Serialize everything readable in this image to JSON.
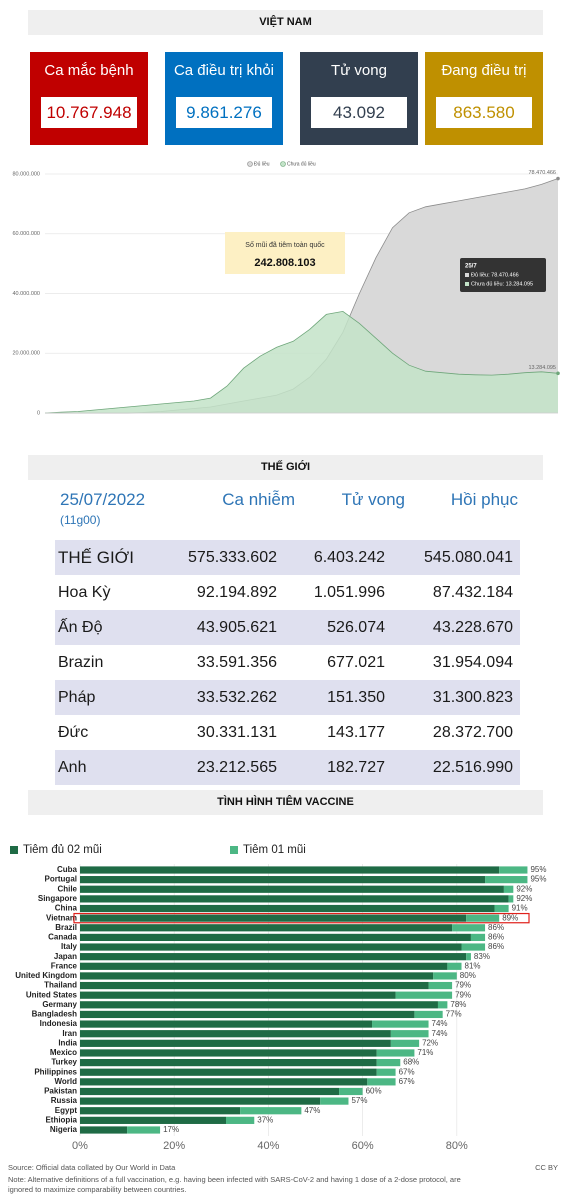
{
  "vn_header": "VIỆT NAM",
  "cards": [
    {
      "label": "Ca mắc bệnh",
      "value": "10.767.948",
      "color": "#c00000"
    },
    {
      "label": "Ca điều trị khỏi",
      "value": "9.861.276",
      "color": "#0070c0"
    },
    {
      "label": "Tử vong",
      "value": "43.092",
      "color": "#323f4f"
    },
    {
      "label": "Đang điều trị",
      "value": "863.580",
      "color": "#bf9000"
    }
  ],
  "chart_data": [
    {
      "type": "area",
      "categories": [
        null,
        null,
        null,
        null,
        null,
        null,
        null,
        null,
        null,
        null,
        null,
        null,
        null,
        null,
        null,
        null,
        null,
        null,
        null,
        null,
        null,
        null,
        null,
        null,
        null,
        null,
        null,
        null,
        null,
        null,
        null,
        null
      ],
      "series": [
        {
          "name": "Đủ liều",
          "color": "#d9d9d9",
          "line": "#8c8c8c",
          "end_label": "78.470.466",
          "values": [
            0,
            0,
            0,
            0,
            0,
            0,
            200000,
            500000,
            1000000,
            1500000,
            2000000,
            3000000,
            4000000,
            5000000,
            6000000,
            8000000,
            12000000,
            18000000,
            27000000,
            40000000,
            52000000,
            62000000,
            67000000,
            69000000,
            70000000,
            71000000,
            72000000,
            73000000,
            74000000,
            75000000,
            76500000,
            78470466
          ]
        },
        {
          "name": "Chưa đủ liều",
          "color": "#c3e3c8",
          "line": "#6ea67a",
          "end_label": "13.284.095",
          "values": [
            0,
            300000,
            500000,
            1000000,
            1500000,
            2000000,
            2500000,
            3000000,
            3500000,
            4000000,
            5000000,
            9000000,
            15000000,
            19000000,
            22000000,
            24000000,
            28000000,
            33000000,
            34000000,
            30000000,
            25000000,
            20000000,
            16000000,
            14000000,
            13500000,
            13000000,
            12800000,
            12700000,
            13000000,
            13500000,
            13800000,
            13284095
          ]
        }
      ],
      "ylim": [
        0,
        83000000
      ],
      "yticks": [
        0,
        {
          "value": 20000000,
          "label": "20.000.000"
        },
        {
          "value": 40000000,
          "label": "40.000.000"
        },
        {
          "value": 60000000,
          "label": "60.000.000"
        },
        {
          "value": 80000000,
          "label": "80.000.000"
        }
      ],
      "grid": true,
      "annotation": {
        "title": "Số mũi đã tiêm toàn quốc",
        "value": "242.808.103"
      },
      "tooltip": {
        "date": "25/7",
        "lines": [
          "Đủ liều: 78.470.466",
          "Chưa đủ liều: 13.284.095"
        ]
      }
    },
    {
      "type": "stacked-barh",
      "categories": [
        "Cuba",
        "Portugal",
        "Chile",
        "Singapore",
        "China",
        "Vietnam",
        "Brazil",
        "Canada",
        "Italy",
        "Japan",
        "France",
        "United Kingdom",
        "Thailand",
        "United States",
        "Germany",
        "Bangladesh",
        "Indonesia",
        "Iran",
        "India",
        "Mexico",
        "Turkey",
        "Philippines",
        "World",
        "Pakistan",
        "Russia",
        "Egypt",
        "Ethiopia",
        "Nigeria"
      ],
      "series": [
        {
          "name": "Tiêm đủ 02 mũi",
          "color": "#1f6b45",
          "values": [
            89,
            86,
            90,
            91,
            88,
            82,
            79,
            83,
            81,
            82,
            78,
            75,
            74,
            67,
            76,
            71,
            62,
            66,
            66,
            63,
            63,
            63,
            61,
            55,
            51,
            34,
            31,
            10
          ]
        },
        {
          "name": "Tiêm 01 mũi",
          "color": "#4cb784",
          "values": [
            6,
            9,
            2,
            1,
            3,
            7,
            7,
            3,
            5,
            1,
            3,
            5,
            5,
            12,
            2,
            6,
            12,
            8,
            6,
            8,
            5,
            4,
            6,
            5,
            6,
            13,
            6,
            7
          ]
        }
      ],
      "totals": {
        "values": [
          95,
          95,
          92,
          92,
          91,
          89,
          86,
          86,
          86,
          83,
          81,
          80,
          79,
          79,
          78,
          77,
          74,
          74,
          72,
          71,
          68,
          67,
          67,
          60,
          57,
          47,
          37,
          17
        ],
        "value_labels": [
          "95%",
          "95%",
          "92%",
          "92%",
          "91%",
          "89%",
          "86%",
          "86%",
          "86%",
          "83%",
          "81%",
          "80%",
          "79%",
          "79%",
          "78%",
          "77%",
          "74%",
          "74%",
          "72%",
          "71%",
          "68%",
          "67%",
          "67%",
          "60%",
          "57%",
          "47%",
          "37%",
          "17%"
        ]
      },
      "xlim": [
        0,
        100
      ],
      "xticks": [
        {
          "value": 0,
          "label": "0%"
        },
        {
          "value": 20,
          "label": "20%"
        },
        {
          "value": 40,
          "label": "40%"
        },
        {
          "value": 60,
          "label": "60%"
        },
        {
          "value": 80,
          "label": "80%"
        }
      ],
      "grid": true,
      "highlight": "Vietnam"
    }
  ],
  "world_header": "THẾ GIỚI",
  "table": {
    "date": "25/07/2022",
    "time": "(11g00)",
    "columns": [
      "Ca nhiễm",
      "Tử vong",
      "Hồi phục"
    ],
    "rows": [
      [
        "THẾ GIỚI",
        "575.333.602",
        "6.403.242",
        "545.080.041"
      ],
      [
        "Hoa Kỳ",
        "92.194.892",
        "1.051.996",
        "87.432.184"
      ],
      [
        "Ấn Độ",
        "43.905.621",
        "526.074",
        "43.228.670"
      ],
      [
        "Brazin",
        "33.591.356",
        "677.021",
        "31.954.094"
      ],
      [
        "Pháp",
        "33.532.262",
        "151.350",
        "31.300.823"
      ],
      [
        "Đức",
        "30.331.131",
        "143.177",
        "28.372.700"
      ],
      [
        "Anh",
        "23.212.565",
        "182.727",
        "22.516.990"
      ]
    ]
  },
  "vaccine_header": "TÌNH HÌNH TIÊM VACCINE",
  "source": "Source: Official data collated by Our World in Data",
  "license": "CC BY",
  "note": [
    "Note: Alternative definitions of a full vaccination, e.g. having been infected with SARS-CoV-2 and having 1 dose of a 2-dose protocol, are",
    "ignored to maximize comparability between countries."
  ]
}
